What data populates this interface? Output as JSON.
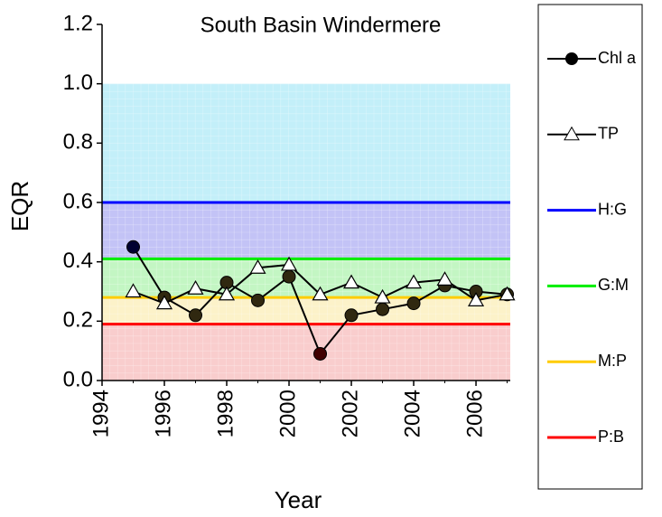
{
  "chart_data": {
    "type": "line",
    "title": "South Basin Windermere",
    "x_label": "Year",
    "y_label": "EQR",
    "x": [
      1995,
      1996,
      1997,
      1998,
      1999,
      2000,
      2001,
      2002,
      2003,
      2004,
      2005,
      2006,
      2007
    ],
    "series": [
      {
        "name": "Chl a",
        "color": "#000000",
        "marker": "circle",
        "values": [
          0.45,
          0.28,
          0.22,
          0.33,
          0.27,
          0.35,
          0.09,
          0.22,
          0.24,
          0.26,
          0.32,
          0.3,
          0.29
        ]
      },
      {
        "name": "TP",
        "color": "#000000",
        "marker": "triangle",
        "values": [
          0.3,
          0.26,
          0.31,
          0.29,
          0.38,
          0.39,
          0.29,
          0.33,
          0.28,
          0.33,
          0.34,
          0.27,
          0.29
        ]
      }
    ],
    "thresholds": [
      {
        "name": "H:G",
        "color": "#0000ff",
        "value": 0.6
      },
      {
        "name": "G:M",
        "color": "#00ee00",
        "value": 0.41
      },
      {
        "name": "M:P",
        "color": "#ffcc00",
        "value": 0.28
      },
      {
        "name": "P:B",
        "color": "#ff0000",
        "value": 0.19
      }
    ],
    "bands": [
      {
        "from": 0.6,
        "to": 1.0,
        "color": "#b8ecf8"
      },
      {
        "from": 0.41,
        "to": 0.6,
        "color": "#b8b8f4"
      },
      {
        "from": 0.28,
        "to": 0.41,
        "color": "#b8f4b8"
      },
      {
        "from": 0.19,
        "to": 0.28,
        "color": "#fcf0c0"
      },
      {
        "from": 0.0,
        "to": 0.19,
        "color": "#f8c4c4"
      }
    ],
    "xlim": [
      1994,
      2007.1
    ],
    "xticks": [
      1994,
      1996,
      1998,
      2000,
      2002,
      2004,
      2006
    ],
    "ylim": [
      0,
      1.2
    ],
    "yticks": [
      {
        "value": 0,
        "label": "0.0"
      },
      0.2,
      0.4,
      0.6,
      0.8,
      {
        "value": 1,
        "label": "1.0"
      },
      1.2
    ]
  }
}
